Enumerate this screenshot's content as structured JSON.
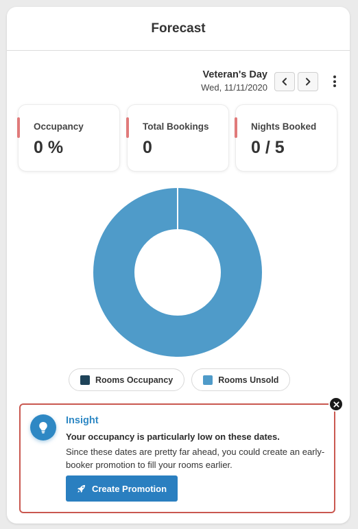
{
  "header": {
    "title": "Forecast"
  },
  "date_nav": {
    "event_name": "Veteran's Day",
    "date": "Wed, 11/11/2020",
    "prev_icon": "chevron-left-icon",
    "next_icon": "chevron-right-icon",
    "more_icon": "kebab-menu-icon"
  },
  "stats": [
    {
      "label": "Occupancy",
      "value": "0 %"
    },
    {
      "label": "Total Bookings",
      "value": "0"
    },
    {
      "label": "Nights Booked",
      "value": "0 / 5"
    }
  ],
  "colors": {
    "accent": "#e07a7a",
    "occupied": "#1e4359",
    "unsold": "#4f9bc9",
    "insight_border": "#c9574f",
    "primary": "#2a7fc0"
  },
  "chart_data": {
    "type": "pie",
    "variant": "donut",
    "categories": [
      "Rooms Occupancy",
      "Rooms Unsold"
    ],
    "values": [
      0,
      5
    ],
    "legend_position": "bottom"
  },
  "legend": [
    {
      "label": "Rooms Occupancy"
    },
    {
      "label": "Rooms Unsold"
    }
  ],
  "insight": {
    "title": "Insight",
    "headline": "Your occupancy is particularly low on these dates.",
    "body": "Since these dates are pretty far ahead, you could create an early-booker promotion to fill your rooms earlier.",
    "button_label": "Create Promotion",
    "icon": "lightbulb-icon",
    "button_icon": "rocket-icon",
    "close_icon": "close-icon"
  }
}
